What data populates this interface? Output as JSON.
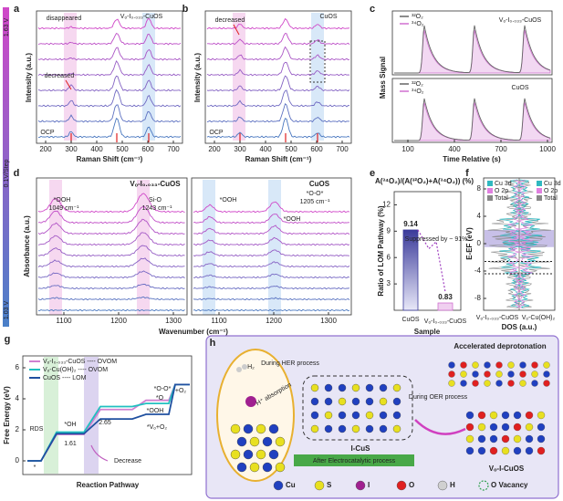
{
  "sidebar": {
    "top": "1.63 V",
    "step": "0.1V/Step",
    "bottom": "1.03 V"
  },
  "a": {
    "label": "a",
    "sample": "Vₒ-I₀.₀₃₃-CuOS",
    "note_top": "disappeared",
    "note_mid": "decreased",
    "ocp": "OCP",
    "xticks": [
      200,
      300,
      400,
      500,
      600,
      700
    ],
    "xlabel": "Raman Shift (cm⁻¹)",
    "ylabel": "Intensity (a.u.)"
  },
  "b": {
    "label": "b",
    "sample": "CuOS",
    "note": "decreased",
    "ocp": "OCP",
    "xticks": [
      200,
      300,
      400,
      500,
      600,
      700
    ],
    "xlabel": "Raman Shift (cm⁻¹)",
    "ylabel": "Intensity (a.u.)"
  },
  "c": {
    "label": "c",
    "legend_top": [
      "³²O₂",
      "³⁴O₂"
    ],
    "sample_top": "Vₒ-I₀.₀₃₃-CuOS",
    "legend_bottom": [
      "³²O₂",
      "³⁴O₂"
    ],
    "sample_bottom": "CuOS",
    "xticks": [
      100,
      400,
      700,
      1000
    ],
    "xlabel": "Time Relative (s)",
    "ylabel": "Mass Signal"
  },
  "d": {
    "label": "d",
    "left": {
      "sample": "Vₒ-I₀.₀₃₃-CuOS",
      "peak1": "*OOH",
      "peak1_pos": "1049 cm⁻¹",
      "peak2": "Si-O",
      "peak2_pos": "1243 cm⁻¹",
      "xticks": [
        1100,
        1200,
        1300
      ]
    },
    "right": {
      "sample": "CuOS",
      "peak1": "*OOH",
      "peak2": "*O-O*",
      "peak2_pos": "1205 cm⁻¹",
      "peak3": "*OOH",
      "xticks": [
        1100,
        1200,
        1300
      ]
    },
    "xlabel": "Wavenumber (cm⁻¹)",
    "ylabel": "Absorbance (a.u.)"
  },
  "chart_data": {
    "type": "bar",
    "panel_label": "e",
    "title": "A(³⁴O₂)/(A(³²O₂)+A(³⁴O₂)) (%)",
    "categories": [
      "CuOS",
      "Vₒ-I₀.₀₃₃-CuOS"
    ],
    "values": [
      9.14,
      0.83
    ],
    "ylim": [
      0,
      13.5
    ],
    "yticks": [
      3,
      6,
      9,
      12
    ],
    "ylabel": "Ratio of LOM Pathway (%)",
    "xlabel": "Sample",
    "annotation": "Suppressed by ~ 91%",
    "colors": [
      "#3a3a9a",
      "#d070d0"
    ]
  },
  "f": {
    "label": "f",
    "legend_left": [
      "Cu 3d",
      "O 2p",
      "Total"
    ],
    "legend_right": [
      "Cu 3d",
      "O 2p",
      "Total"
    ],
    "yticks": [
      8,
      4,
      0,
      -4,
      -8
    ],
    "ylabel": "E-EF (eV)",
    "xlabel": "DOS (a.u.)",
    "samples": [
      "Vₒ-I₀.₀₃₃-CuOS",
      "Vₒ-Cu(OH)₂"
    ]
  },
  "g": {
    "label": "g",
    "legend": [
      "Vₒ-I₀.₀₃₃-CuOS ---- OVOM",
      "Vₒ-Cu(OH)₂ ---- OVOM",
      "CuOS ---- LOM"
    ],
    "yticks": [
      0,
      2,
      4,
      6
    ],
    "ylabel": "Free Energy (eV)",
    "xlabel": "Reaction Pathway",
    "labels": {
      "rds": "RDS",
      "oh": "*OH",
      "e1": "1.61",
      "e2": "2.65",
      "oo": "*O-O*",
      "o": "*O",
      "ooh": "*OOH",
      "vo": "*Vₒ+O₂",
      "o2": "+O₂",
      "decrease": "Decrease",
      "star": "*"
    }
  },
  "h": {
    "label": "h",
    "her": "During HER process",
    "h2": "H₂",
    "h_abs": "H⁺ absorption",
    "oer": "During OER process",
    "deprot": "Accelerated deprotonation",
    "icus": "I-CuS",
    "after": "After Electrocatalytic process",
    "vocuos": "Vₒ-I-CuOS",
    "legend": [
      "Cu",
      "S",
      "I",
      "O",
      "H",
      "O Vacancy"
    ]
  }
}
